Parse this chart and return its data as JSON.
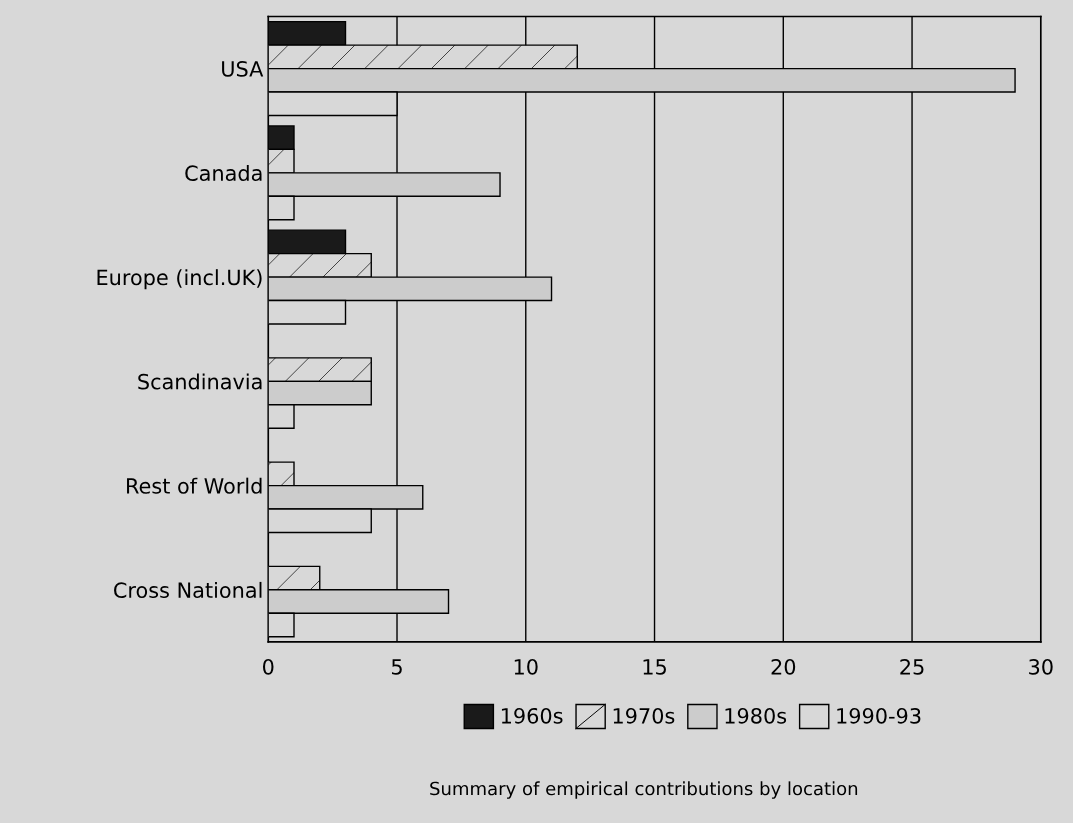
{
  "chart_data": {
    "type": "bar",
    "orientation": "horizontal",
    "categories": [
      "USA",
      "Canada",
      "Europe (incl.UK)",
      "Scandinavia",
      "Rest of World",
      "Cross National"
    ],
    "series": [
      {
        "name": "1960s",
        "color": "#1a1a1a",
        "values": [
          3,
          1,
          3,
          0,
          0,
          0
        ]
      },
      {
        "name": "1970s",
        "color": "#d8d8d8",
        "values": [
          12,
          1,
          4,
          4,
          1,
          2
        ]
      },
      {
        "name": "1980s",
        "color": "#cccccc",
        "values": [
          29,
          9,
          11,
          4,
          6,
          7
        ]
      },
      {
        "name": "1990-93",
        "color": "#d8d8d8",
        "values": [
          5,
          1,
          3,
          1,
          4,
          1
        ]
      }
    ],
    "xlim": [
      0,
      30
    ],
    "xticks": [
      0,
      5,
      10,
      15,
      20,
      25,
      30
    ],
    "grid": "x",
    "legend": "bottom",
    "annotations": [
      "Summary of empirical contributions by location"
    ]
  }
}
